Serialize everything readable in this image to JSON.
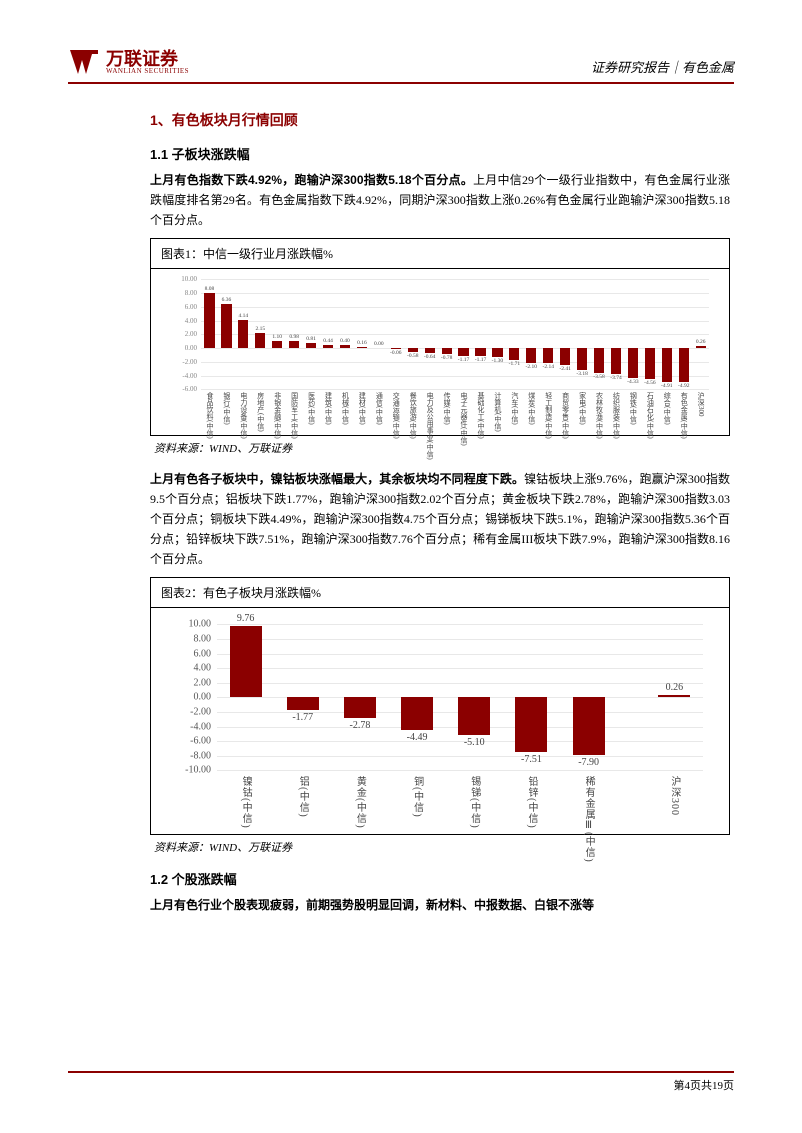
{
  "header": {
    "logo_cn": "万联证券",
    "logo_en": "WANLIAN SECURITIES",
    "logo_color": "#8b0000",
    "right_text": "证券研究报告｜有色金属"
  },
  "section1_title": "1、有色板块月行情回顾",
  "section1_1_title": "1.1 子板块涨跌幅",
  "para1_bold": "上月有色指数下跌4.92%，跑输沪深300指数5.18个百分点。",
  "para1_rest": "上月中信29个一级行业指数中，有色金属行业涨跌幅度排名第29名。有色金属指数下跌4.92%，同期沪深300指数上涨0.26%有色金属行业跑输沪深300指数5.18个百分点。",
  "chart1": {
    "title": "图表1：中信一级行业月涨跌幅%",
    "type": "bar",
    "ymin": -6,
    "ymax": 10,
    "ystep": 2,
    "yticks": [
      10,
      8,
      6,
      4,
      2,
      0,
      -2,
      -4,
      -6
    ],
    "ytick_labels": [
      "10.00",
      "8.00",
      "6.00",
      "4.00",
      "2.00",
      "0.00",
      "-2.00",
      "-4.00",
      "-6.00"
    ],
    "bar_color": "#8b0000",
    "grid_color": "#e8e8e8",
    "label_fontsize": 5.5,
    "categories": [
      "食品饮料(中信)",
      "银行(中信)",
      "电力设备(中信)",
      "房地产(中信)",
      "非银金融(中信)",
      "国防军工(中信)",
      "医药(中信)",
      "建筑(中信)",
      "机械(中信)",
      "建材(中信)",
      "通信(中信)",
      "交通运输(中信)",
      "餐饮旅游(中信)",
      "电力及公用事业(中信)",
      "传媒(中信)",
      "电子元器件(中信)",
      "基础化工(中信)",
      "计算机(中信)",
      "汽车(中信)",
      "煤炭(中信)",
      "轻工制造(中信)",
      "商贸零售(中信)",
      "家电(中信)",
      "农林牧渔(中信)",
      "纺织服装(中信)",
      "钢铁(中信)",
      "石油石化(中信)",
      "综合(中信)",
      "有色金属(中信)",
      "沪深300"
    ],
    "values": [
      8.08,
      6.36,
      4.14,
      2.15,
      1.1,
      0.98,
      0.81,
      0.44,
      0.4,
      0.16,
      0.0,
      -0.06,
      -0.58,
      -0.64,
      -0.78,
      -1.17,
      -1.17,
      -1.3,
      -1.71,
      -2.1,
      -2.14,
      -2.41,
      -3.18,
      -3.58,
      -3.74,
      -4.33,
      -4.56,
      -4.91,
      -4.92,
      0.26
    ],
    "source": "资料来源：WIND、万联证券"
  },
  "para2_bold": "上月有色各子板块中，镍钴板块涨幅最大，其余板块均不同程度下跌。",
  "para2_rest": "镍钴板块上涨9.76%，跑赢沪深300指数9.5个百分点；铝板块下跌1.77%，跑输沪深300指数2.02个百分点；黄金板块下跌2.78%，跑输沪深300指数3.03个百分点；铜板块下跌4.49%，跑输沪深300指数4.75个百分点；锡锑板块下跌5.1%，跑输沪深300指数5.36个百分点；铅锌板块下跌7.51%，跑输沪深300指数7.76个百分点；稀有金属III板块下跌7.9%，跑输沪深300指数8.16个百分点。",
  "chart2": {
    "title": "图表2：有色子板块月涨跌幅%",
    "type": "bar",
    "ymin": -10,
    "ymax": 10,
    "ystep": 2,
    "yticks": [
      10,
      8,
      6,
      4,
      2,
      0,
      -2,
      -4,
      -6,
      -8,
      -10
    ],
    "ytick_labels": [
      "10.00",
      "8.00",
      "6.00",
      "4.00",
      "2.00",
      "0.00",
      "-2.00",
      "-4.00",
      "-6.00",
      "-8.00",
      "-10.00"
    ],
    "bar_color": "#8b0000",
    "grid_color": "#e8e8e8",
    "label_fontsize": 10,
    "categories": [
      "镍钴(中信)",
      "铝(中信)",
      "黄金(中信)",
      "铜(中信)",
      "锡锑(中信)",
      "铅锌(中信)",
      "稀有金属Ⅲ(中信)",
      "沪深300"
    ],
    "values": [
      9.76,
      -1.77,
      -2.78,
      -4.49,
      -5.1,
      -7.51,
      -7.9,
      0.26
    ],
    "source": "资料来源：WIND、万联证券"
  },
  "section1_2_title": "1.2 个股涨跌幅",
  "para3_bold": "上月有色行业个股表现疲弱，前期强势股明显回调，新材料、中报数据、白银不涨等",
  "footer": "第4页共19页"
}
